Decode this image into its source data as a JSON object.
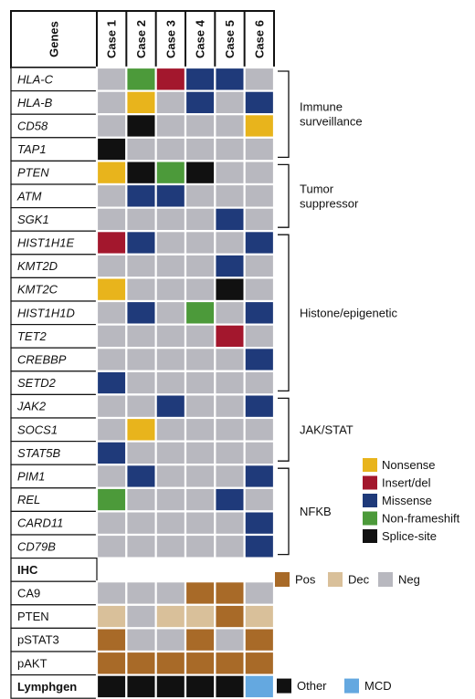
{
  "header": {
    "genes_label": "Genes"
  },
  "cases": [
    "Case 1",
    "Case 2",
    "Case 3",
    "Case 4",
    "Case 5",
    "Case 6"
  ],
  "colors": {
    "N": "#e8b41c",
    "I": "#a3172d",
    "M": "#1f3a7a",
    "F": "#4c9a3a",
    "S": "#111111",
    "G": "#b8b8bf",
    "P": "#a86a28",
    "D": "#d9c09a",
    "O": "#111111",
    "C": "#64a8e0"
  },
  "genes": [
    {
      "name": "HLA-C",
      "cells": [
        "G",
        "F",
        "I",
        "M",
        "M",
        "G"
      ]
    },
    {
      "name": "HLA-B",
      "cells": [
        "G",
        "N",
        "G",
        "M",
        "G",
        "M"
      ]
    },
    {
      "name": "CD58",
      "cells": [
        "G",
        "S",
        "G",
        "G",
        "G",
        "N"
      ]
    },
    {
      "name": "TAP1",
      "cells": [
        "S",
        "G",
        "G",
        "G",
        "G",
        "G"
      ]
    },
    {
      "name": "PTEN",
      "cells": [
        "N",
        "S",
        "F",
        "S",
        "G",
        "G"
      ]
    },
    {
      "name": "ATM",
      "cells": [
        "G",
        "M",
        "M",
        "G",
        "G",
        "G"
      ]
    },
    {
      "name": "SGK1",
      "cells": [
        "G",
        "G",
        "G",
        "G",
        "M",
        "G"
      ]
    },
    {
      "name": "HIST1H1E",
      "cells": [
        "I",
        "M",
        "G",
        "G",
        "G",
        "M"
      ]
    },
    {
      "name": "KMT2D",
      "cells": [
        "G",
        "G",
        "G",
        "G",
        "M",
        "G"
      ]
    },
    {
      "name": "KMT2C",
      "cells": [
        "N",
        "G",
        "G",
        "G",
        "S",
        "G"
      ]
    },
    {
      "name": "HIST1H1D",
      "cells": [
        "G",
        "M",
        "G",
        "F",
        "G",
        "M"
      ]
    },
    {
      "name": "TET2",
      "cells": [
        "G",
        "G",
        "G",
        "G",
        "I",
        "G"
      ]
    },
    {
      "name": "CREBBP",
      "cells": [
        "G",
        "G",
        "G",
        "G",
        "G",
        "M"
      ]
    },
    {
      "name": "SETD2",
      "cells": [
        "M",
        "G",
        "G",
        "G",
        "G",
        "G"
      ]
    },
    {
      "name": "JAK2",
      "cells": [
        "G",
        "G",
        "M",
        "G",
        "G",
        "M"
      ]
    },
    {
      "name": "SOCS1",
      "cells": [
        "G",
        "N",
        "G",
        "G",
        "G",
        "G"
      ]
    },
    {
      "name": "STAT5B",
      "cells": [
        "M",
        "G",
        "G",
        "G",
        "G",
        "G"
      ]
    },
    {
      "name": "PIM1",
      "cells": [
        "G",
        "M",
        "G",
        "G",
        "G",
        "M"
      ]
    },
    {
      "name": "REL",
      "cells": [
        "F",
        "G",
        "G",
        "G",
        "M",
        "G"
      ]
    },
    {
      "name": "CARD11",
      "cells": [
        "G",
        "G",
        "G",
        "G",
        "G",
        "M"
      ]
    },
    {
      "name": "CD79B",
      "cells": [
        "G",
        "G",
        "G",
        "G",
        "G",
        "M"
      ]
    }
  ],
  "ihc_header": "IHC",
  "ihc": [
    {
      "name": "CA9",
      "cells": [
        "G",
        "G",
        "G",
        "P",
        "P",
        "G"
      ]
    },
    {
      "name": "PTEN",
      "cells": [
        "D",
        "G",
        "D",
        "D",
        "P",
        "D"
      ]
    },
    {
      "name": "pSTAT3",
      "cells": [
        "P",
        "G",
        "G",
        "P",
        "G",
        "P"
      ]
    },
    {
      "name": "pAKT",
      "cells": [
        "P",
        "P",
        "P",
        "P",
        "P",
        "P"
      ]
    }
  ],
  "lymphgen": {
    "name": "Lymphgen",
    "cells": [
      "O",
      "O",
      "O",
      "O",
      "O",
      "C"
    ]
  },
  "groups": [
    {
      "lines": [
        "Immune",
        "surveillance"
      ]
    },
    {
      "lines": [
        "Tumor",
        "suppressor"
      ]
    },
    {
      "lines": [
        "Histone/epigenetic"
      ]
    },
    {
      "lines": [
        "JAK/STAT"
      ]
    },
    {
      "lines": [
        "NFKB"
      ]
    }
  ],
  "mutation_legend": [
    {
      "label": "Nonsense",
      "code": "N"
    },
    {
      "label": "Insert/del",
      "code": "I"
    },
    {
      "label": "Missense",
      "code": "M"
    },
    {
      "label": "Non-frameshift",
      "code": "F"
    },
    {
      "label": "Splice-site",
      "code": "S"
    }
  ],
  "ihc_legend": [
    {
      "label": "Pos",
      "code": "P"
    },
    {
      "label": "Dec",
      "code": "D"
    },
    {
      "label": "Neg",
      "code": "G"
    }
  ],
  "lymphgen_legend": [
    {
      "label": "Other",
      "code": "O"
    },
    {
      "label": "MCD",
      "code": "C"
    }
  ]
}
